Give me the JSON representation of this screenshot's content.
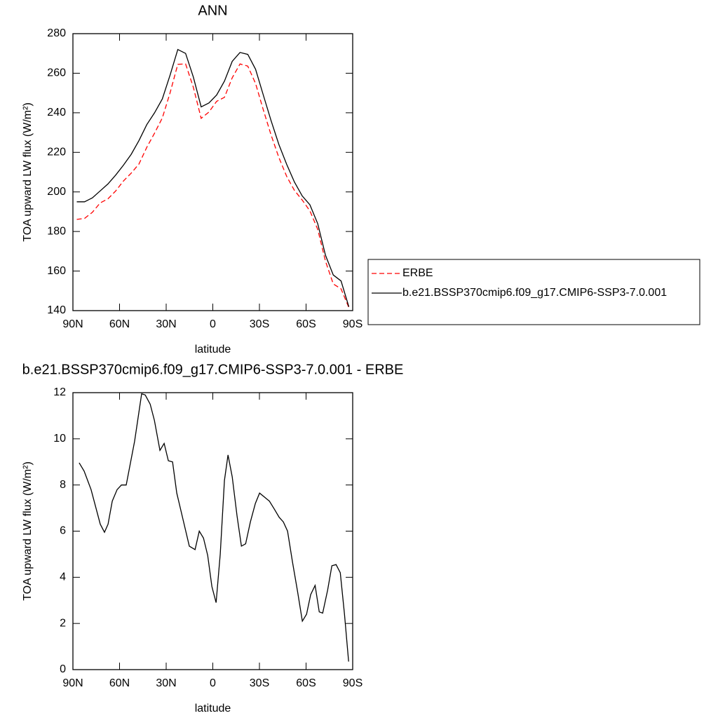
{
  "chart_data": [
    {
      "type": "line",
      "title": "ANN",
      "xlabel": "latitude",
      "ylabel": "TOA upward LW flux (W/m²)",
      "x": [
        87.5,
        82.5,
        77.5,
        72.5,
        67.5,
        62.5,
        57.5,
        52.5,
        47.5,
        42.5,
        37.5,
        32.5,
        27.5,
        22.5,
        17.5,
        12.5,
        7.5,
        2.5,
        -2.5,
        -7.5,
        -12.5,
        -17.5,
        -22.5,
        -27.5,
        -32.5,
        -37.5,
        -42.5,
        -47.5,
        -52.5,
        -57.5,
        -62.5,
        -67.5,
        -72.5,
        -77.5,
        -82.5,
        -87.5
      ],
      "series": [
        {
          "name": "ERBE",
          "color": "#ff0000",
          "dashed": true,
          "values": [
            186.1,
            186.6,
            189.7,
            194.4,
            196.5,
            200.5,
            205.5,
            209.5,
            214.1,
            222.5,
            229.7,
            237.4,
            250.0,
            264.5,
            264.7,
            252.8,
            237.2,
            240.4,
            245.8,
            247.8,
            257.7,
            264.7,
            263.6,
            254.8,
            241.5,
            228.8,
            217.4,
            207.9,
            200.8,
            195.9,
            190.4,
            181.1,
            165.0,
            153.5,
            151.0,
            141.6
          ]
        },
        {
          "name": "b.e21.BSSP370cmip6.f09_g17.CMIP6-SSP3-7.0.001",
          "color": "#000000",
          "dashed": false,
          "values": [
            195,
            195,
            197,
            200.5,
            204,
            208.5,
            213.5,
            219,
            226,
            234,
            240,
            247,
            259,
            272,
            270,
            258,
            243,
            245,
            249,
            256,
            266,
            270.5,
            269.5,
            262,
            249,
            236,
            224,
            214,
            205,
            198,
            193.5,
            184,
            168,
            158,
            155,
            142
          ]
        }
      ],
      "xlim": [
        90,
        -90
      ],
      "xticks": [
        {
          "value": 90,
          "label": "90N"
        },
        {
          "value": 60,
          "label": "60N"
        },
        {
          "value": 30,
          "label": "30N"
        },
        0,
        {
          "value": -30,
          "label": "30S"
        },
        {
          "value": -60,
          "label": "60S"
        },
        {
          "value": -90,
          "label": "90S"
        }
      ],
      "ylim": [
        140,
        280
      ],
      "yticks": [
        140,
        160,
        180,
        200,
        220,
        240,
        260,
        280
      ],
      "legend": "right"
    },
    {
      "type": "line",
      "title": "b.e21.BSSP370cmip6.f09_g17.CMIP6-SSP3-7.0.001 - ERBE",
      "xlabel": "latitude",
      "ylabel": "TOA upward LW flux (W/m²)",
      "x": [
        86,
        82.8,
        78.3,
        72.4,
        69.7,
        67.4,
        64.7,
        61.6,
        58.8,
        55.7,
        50.3,
        45.8,
        43.5,
        40.3,
        37.6,
        34,
        31.3,
        28.6,
        25.9,
        23.2,
        15.1,
        11.4,
        8.7,
        6,
        3.3,
        0.6,
        -2.1,
        -4.8,
        -7.5,
        -9.8,
        -12.5,
        -15.6,
        -18.4,
        -21.1,
        -24.2,
        -27.4,
        -30.1,
        -33.7,
        -36.4,
        -39.6,
        -42.7,
        -45.4,
        -48.1,
        -51.3,
        -54.5,
        -57.6,
        -60.3,
        -63,
        -65.8,
        -68.5,
        -70.7,
        -73.9,
        -76.6,
        -79.3,
        -82,
        -84.7,
        -87.4
      ],
      "series": [
        {
          "color": "#000000",
          "dashed": false,
          "values": [
            8.96,
            8.6,
            7.8,
            6.3,
            5.95,
            6.3,
            7.3,
            7.8,
            8.0,
            8.0,
            9.9,
            11.95,
            11.9,
            11.5,
            10.8,
            9.5,
            9.8,
            9.05,
            9.0,
            7.65,
            5.35,
            5.2,
            6.0,
            5.7,
            4.95,
            3.6,
            2.9,
            5.0,
            8.2,
            9.3,
            8.35,
            6.65,
            5.35,
            5.45,
            6.4,
            7.2,
            7.65,
            7.45,
            7.3,
            6.95,
            6.6,
            6.4,
            6.0,
            4.65,
            3.4,
            2.1,
            2.4,
            3.25,
            3.65,
            2.5,
            2.45,
            3.45,
            4.5,
            4.55,
            4.2,
            2.4,
            0.35
          ]
        }
      ],
      "xlim": [
        90,
        -90
      ],
      "xticks": [
        {
          "value": 90,
          "label": "90N"
        },
        {
          "value": 60,
          "label": "60N"
        },
        {
          "value": 30,
          "label": "30N"
        },
        0,
        {
          "value": -30,
          "label": "30S"
        },
        {
          "value": -60,
          "label": "60S"
        },
        {
          "value": -90,
          "label": "90S"
        }
      ],
      "ylim": [
        0,
        12
      ],
      "yticks": [
        0,
        2,
        4,
        6,
        8,
        10,
        12
      ]
    }
  ]
}
